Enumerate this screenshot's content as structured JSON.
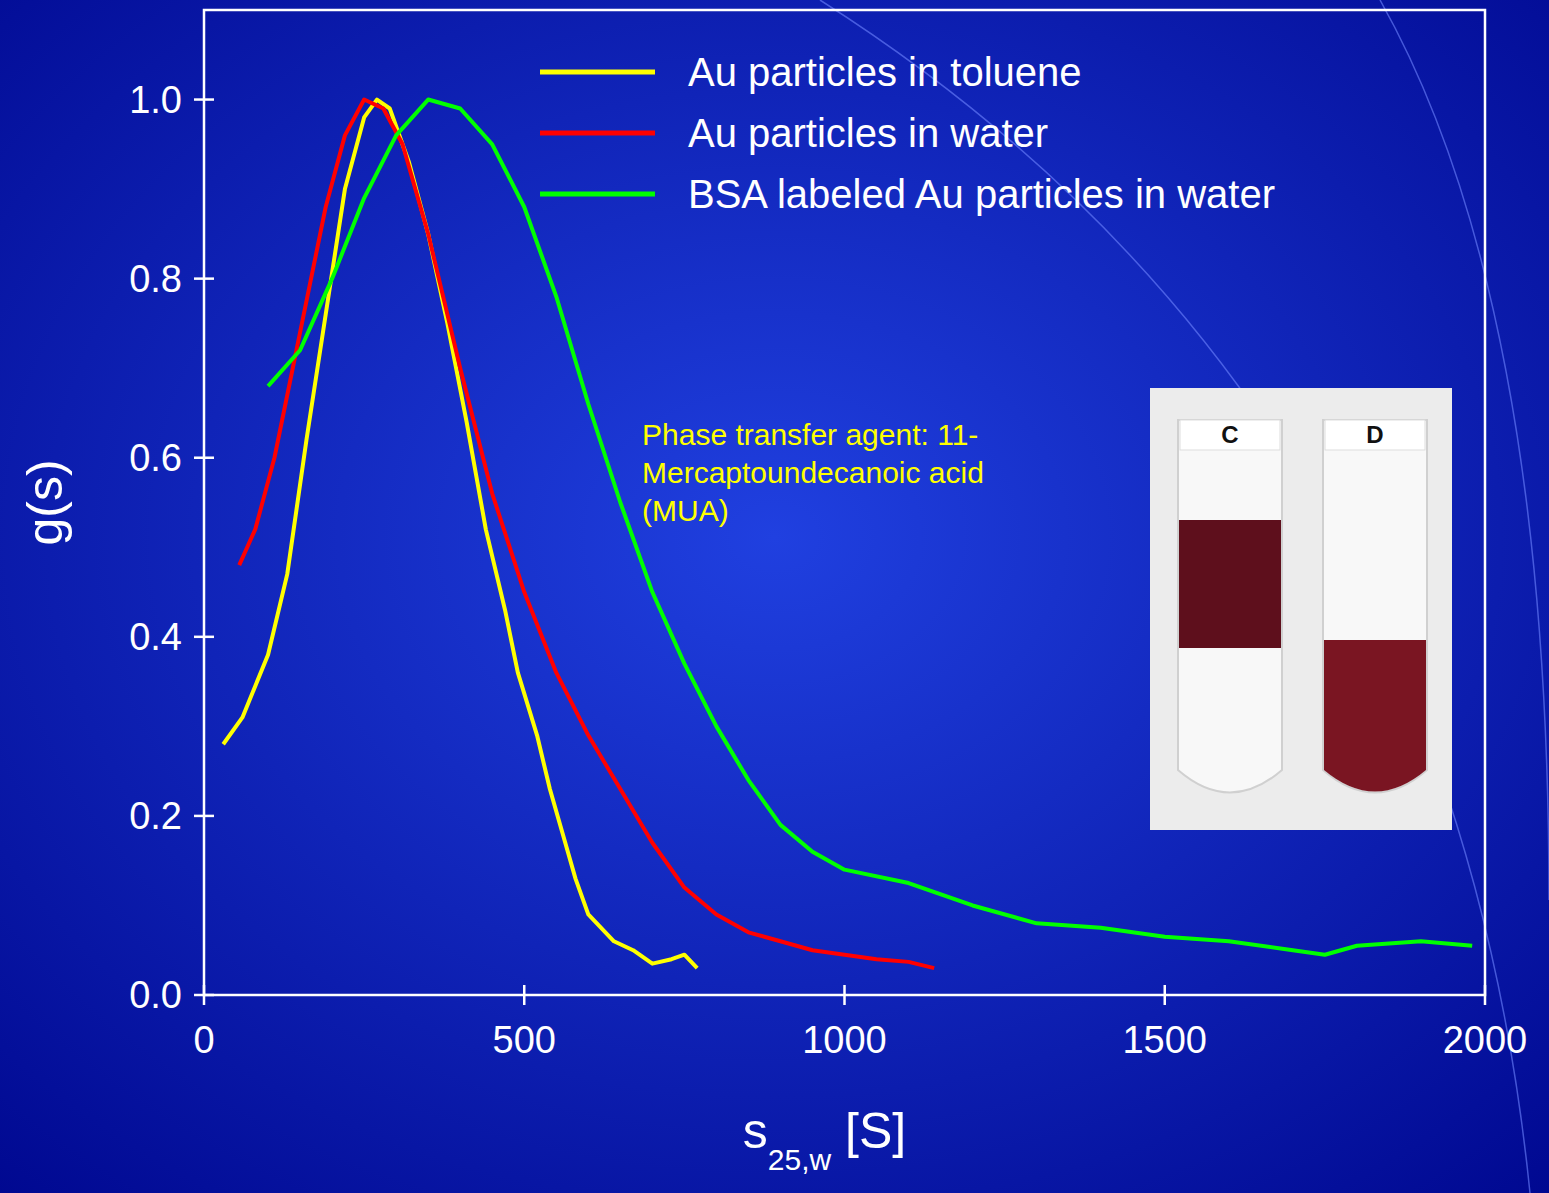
{
  "chart_data": {
    "type": "line",
    "x_label": {
      "text": "s",
      "subscript": "25,w",
      "suffix": " [S]"
    },
    "y_label": "g(s)",
    "xlim": [
      0,
      2000
    ],
    "ylim": [
      0,
      1.1
    ],
    "xticks": [
      0,
      500,
      1000,
      1500,
      2000
    ],
    "yticks": [
      {
        "value": 0,
        "label": "0.0"
      },
      {
        "value": 0.2,
        "label": "0.2"
      },
      {
        "value": 0.4,
        "label": "0.4"
      },
      {
        "value": 0.6,
        "label": "0.6"
      },
      {
        "value": 0.8,
        "label": "0.8"
      },
      {
        "value": 1.0,
        "label": "1.0"
      }
    ],
    "legend": "top-right",
    "grid": false,
    "series": [
      {
        "name": "Au particles in toluene",
        "color": "#ffff00",
        "x": [
          30,
          60,
          100,
          130,
          160,
          190,
          220,
          250,
          270,
          290,
          320,
          350,
          380,
          410,
          440,
          470,
          490,
          520,
          540,
          560,
          580,
          600,
          640,
          670,
          700,
          730,
          750,
          770
        ],
        "values": [
          0.28,
          0.31,
          0.38,
          0.47,
          0.62,
          0.76,
          0.9,
          0.98,
          1.0,
          0.99,
          0.93,
          0.85,
          0.75,
          0.64,
          0.52,
          0.43,
          0.36,
          0.29,
          0.23,
          0.18,
          0.13,
          0.09,
          0.06,
          0.05,
          0.035,
          0.04,
          0.045,
          0.03
        ]
      },
      {
        "name": "Au particles in water",
        "color": "#ff0000",
        "x": [
          55,
          80,
          110,
          150,
          190,
          220,
          250,
          280,
          310,
          350,
          400,
          450,
          500,
          550,
          600,
          650,
          700,
          750,
          800,
          850,
          900,
          950,
          1000,
          1050,
          1100,
          1140
        ],
        "values": [
          0.48,
          0.52,
          0.6,
          0.74,
          0.88,
          0.96,
          1.0,
          0.99,
          0.95,
          0.85,
          0.7,
          0.56,
          0.45,
          0.36,
          0.29,
          0.23,
          0.17,
          0.12,
          0.09,
          0.07,
          0.06,
          0.05,
          0.045,
          0.04,
          0.037,
          0.03
        ]
      },
      {
        "name": "BSA labeled Au particles in water",
        "color": "#00ff00",
        "x": [
          100,
          150,
          200,
          250,
          300,
          350,
          400,
          450,
          500,
          550,
          600,
          650,
          700,
          750,
          800,
          850,
          900,
          950,
          1000,
          1100,
          1200,
          1300,
          1400,
          1500,
          1600,
          1700,
          1750,
          1800,
          1900,
          1980
        ],
        "values": [
          0.68,
          0.72,
          0.8,
          0.89,
          0.96,
          1.0,
          0.99,
          0.95,
          0.88,
          0.78,
          0.66,
          0.55,
          0.45,
          0.37,
          0.3,
          0.24,
          0.19,
          0.16,
          0.14,
          0.125,
          0.1,
          0.08,
          0.075,
          0.065,
          0.06,
          0.05,
          0.045,
          0.055,
          0.06,
          0.055
        ]
      }
    ],
    "annotation": [
      "Phase transfer agent: 11-",
      "Mercaptoundecanoic acid",
      "(MUA)"
    ],
    "inset": {
      "labels": [
        "C",
        "D"
      ]
    }
  }
}
